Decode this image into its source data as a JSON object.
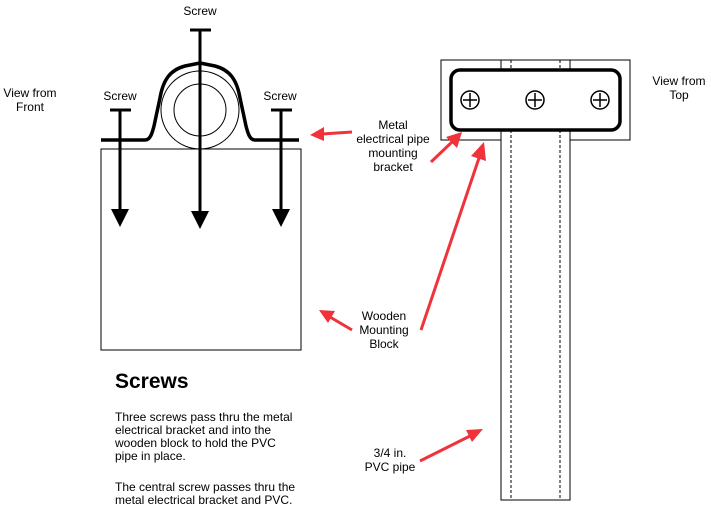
{
  "labels": {
    "screw_top": "Screw",
    "screw_left": "Screw",
    "screw_right": "Screw",
    "view_front": [
      "View from",
      "Front"
    ],
    "view_top": [
      "View from",
      "Top"
    ],
    "bracket": [
      "Metal",
      "electrical pipe",
      "mounting",
      "bracket"
    ],
    "block": [
      "Wooden",
      "Mounting",
      "Block"
    ],
    "pvc": [
      "3/4 in.",
      "PVC pipe"
    ]
  },
  "notes": {
    "heading": "Screws",
    "paragraph1": "Three screws pass thru the metal electrical bracket and into the wooden block to hold the PVC pipe in place.",
    "paragraph2": "The central screw passes thru the metal electrical bracket and PVC."
  },
  "colors": {
    "arrow": "#f0323a",
    "line": "#000000"
  }
}
